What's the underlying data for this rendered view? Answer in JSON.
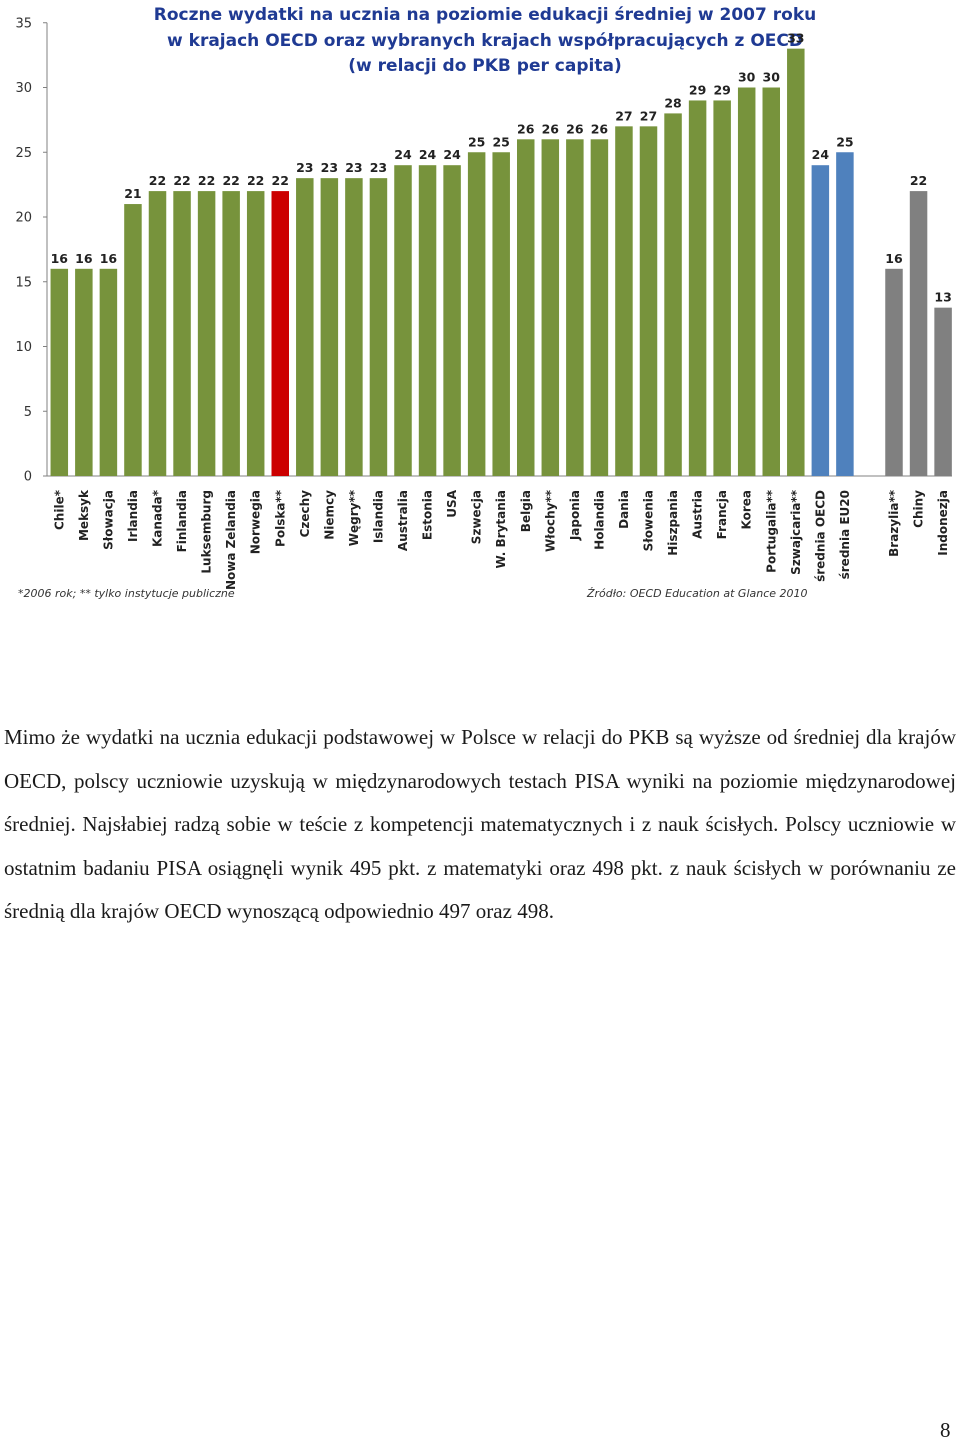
{
  "chart_data": {
    "type": "bar",
    "title": [
      "Roczne wydatki na ucznia na poziomie edukacji średniej w 2007 roku",
      "w krajach OECD oraz wybranych krajach współpracujących z OECD",
      "(w relacji do PKB per capita)"
    ],
    "ylim": [
      0,
      35
    ],
    "yticks": [
      0,
      5,
      10,
      15,
      20,
      25,
      30,
      35
    ],
    "grid": false,
    "legend": "none",
    "categories": [
      "Chile*",
      "Meksyk",
      "Słowacja",
      "Irlandia",
      "Kanada*",
      "Finlandia",
      "Luksemburg",
      "Nowa Zelandia",
      "Norwegia",
      "Polska**",
      "Czechy",
      "Niemcy",
      "Węgry**",
      "Islandia",
      "Australia",
      "Estonia",
      "USA",
      "Szwecja",
      "W. Brytania",
      "Belgia",
      "Włochy**",
      "Japonia",
      "Holandia",
      "Dania",
      "Słowenia",
      "Hiszpania",
      "Austria",
      "Francja",
      "Korea",
      "Portugalia**",
      "Szwajcaria**",
      "średnia OECD",
      "średnia EU20",
      "",
      "Brazylia**",
      "Chiny",
      "Indonezja"
    ],
    "values": [
      16,
      16,
      16,
      21,
      22,
      22,
      22,
      22,
      22,
      22,
      23,
      23,
      23,
      23,
      24,
      24,
      24,
      25,
      25,
      26,
      26,
      26,
      26,
      27,
      27,
      28,
      29,
      29,
      30,
      30,
      33,
      24,
      25,
      null,
      16,
      22,
      13
    ],
    "groups": [
      "oecd",
      "oecd",
      "oecd",
      "oecd",
      "oecd",
      "oecd",
      "oecd",
      "oecd",
      "oecd",
      "poland",
      "oecd",
      "oecd",
      "oecd",
      "oecd",
      "oecd",
      "oecd",
      "oecd",
      "oecd",
      "oecd",
      "oecd",
      "oecd",
      "oecd",
      "oecd",
      "oecd",
      "oecd",
      "oecd",
      "oecd",
      "oecd",
      "oecd",
      "oecd",
      "oecd",
      "average",
      "average",
      "gap",
      "partner",
      "partner",
      "partner"
    ],
    "colors": {
      "oecd": "#77933c",
      "poland": "#cc0000",
      "average": "#4f81bd",
      "partner": "#808080",
      "axis": "#808080"
    },
    "footnote": "*2006 rok; ** tylko instytucje publiczne",
    "source": "Źródło: OECD Education at Glance 2010"
  },
  "text": {
    "paragraph": "Mimo że wydatki na ucznia edukacji podstawowej w Polsce w relacji do PKB są wyższe od średniej dla krajów OECD, polscy uczniowie uzyskują w międzynarodowych testach PISA wyniki na poziomie międzynarodowej średniej. Najsłabiej radzą sobie w teście z kompetencji matematycznych i z nauk ścisłych. Polscy uczniowie w ostatnim badaniu PISA osiągnęli wynik 495 pkt. z matematyki oraz 498 pkt. z nauk ścisłych w porównaniu ze średnią dla krajów OECD wynoszącą odpowiednio 497 oraz 498.",
    "page_number": "8"
  }
}
